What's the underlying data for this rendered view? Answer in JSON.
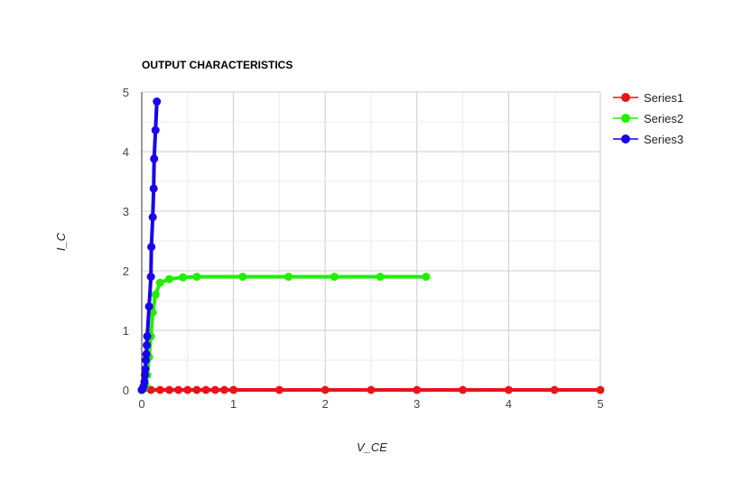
{
  "chart_data": {
    "type": "line",
    "title": "OUTPUT CHARACTERISTICS",
    "xlabel": "V_CE",
    "ylabel": "I_C",
    "xlim": [
      0,
      5
    ],
    "ylim": [
      0,
      5
    ],
    "xticks": [
      "0",
      "1",
      "2",
      "3",
      "4",
      "5"
    ],
    "yticks": [
      "0",
      "1",
      "2",
      "3",
      "4",
      "5"
    ],
    "grid": true,
    "legend_position": "right",
    "series": [
      {
        "name": "Series1",
        "color": "#e8141a",
        "points": [
          [
            0,
            0
          ],
          [
            0.1,
            0
          ],
          [
            0.2,
            0
          ],
          [
            0.3,
            0
          ],
          [
            0.4,
            0
          ],
          [
            0.5,
            0
          ],
          [
            0.6,
            0
          ],
          [
            0.7,
            0
          ],
          [
            0.8,
            0
          ],
          [
            0.9,
            0
          ],
          [
            1,
            0
          ],
          [
            1.5,
            0
          ],
          [
            2,
            0
          ],
          [
            2.5,
            0
          ],
          [
            3,
            0
          ],
          [
            3.5,
            0
          ],
          [
            4,
            0
          ],
          [
            4.5,
            0
          ],
          [
            5,
            0
          ]
        ]
      },
      {
        "name": "Series2",
        "color": "#22ee00",
        "points": [
          [
            0,
            0
          ],
          [
            0.02,
            0.02
          ],
          [
            0.04,
            0.08
          ],
          [
            0.06,
            0.25
          ],
          [
            0.08,
            0.55
          ],
          [
            0.1,
            0.9
          ],
          [
            0.12,
            1.3
          ],
          [
            0.15,
            1.6
          ],
          [
            0.2,
            1.8
          ],
          [
            0.3,
            1.86
          ],
          [
            0.45,
            1.89
          ],
          [
            0.6,
            1.9
          ],
          [
            1.1,
            1.9
          ],
          [
            1.6,
            1.9
          ],
          [
            2.1,
            1.9
          ],
          [
            2.6,
            1.9
          ],
          [
            3.1,
            1.9
          ]
        ]
      },
      {
        "name": "Series3",
        "color": "#1a00ee",
        "points": [
          [
            0,
            0
          ],
          [
            0.01,
            0.02
          ],
          [
            0.02,
            0.06
          ],
          [
            0.03,
            0.14
          ],
          [
            0.035,
            0.25
          ],
          [
            0.04,
            0.35
          ],
          [
            0.045,
            0.5
          ],
          [
            0.05,
            0.6
          ],
          [
            0.055,
            0.75
          ],
          [
            0.06,
            0.9
          ],
          [
            0.08,
            1.4
          ],
          [
            0.1,
            1.9
          ],
          [
            0.105,
            2.4
          ],
          [
            0.12,
            2.9
          ],
          [
            0.13,
            3.38
          ],
          [
            0.135,
            3.88
          ],
          [
            0.15,
            4.36
          ],
          [
            0.165,
            4.84
          ]
        ]
      }
    ]
  }
}
